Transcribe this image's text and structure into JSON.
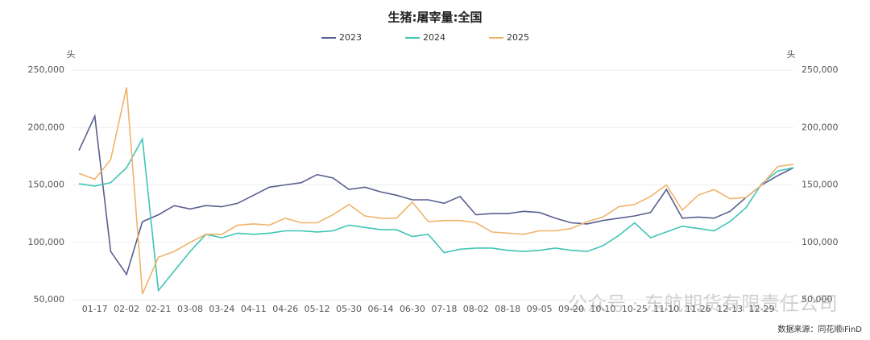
{
  "chart_data": {
    "type": "line",
    "title": "生猪:屠宰量:全国",
    "y_unit": "头",
    "y2_unit": "头",
    "categories": [
      null,
      "01-17",
      null,
      "02-02",
      null,
      "02-21",
      null,
      "03-08",
      null,
      "03-24",
      null,
      "04-11",
      null,
      "04-26",
      null,
      "05-12",
      null,
      "05-30",
      null,
      "06-14",
      null,
      "06-30",
      null,
      "07-18",
      null,
      "08-02",
      null,
      "08-18",
      null,
      "09-05",
      null,
      "09-20",
      null,
      "10-10",
      null,
      "10-25",
      null,
      "11-10",
      null,
      "11-26",
      null,
      "12-13",
      null,
      "12-29",
      null,
      null
    ],
    "series": [
      {
        "name": "2023",
        "color": "#5a5f8f",
        "values": [
          180000,
          210000,
          92000,
          72000,
          118000,
          124000,
          132000,
          129000,
          132000,
          131000,
          134000,
          141000,
          148000,
          150000,
          152000,
          159000,
          156000,
          146000,
          148000,
          144000,
          141000,
          137000,
          137000,
          134000,
          140000,
          124000,
          125000,
          125000,
          127000,
          126000,
          121000,
          117000,
          116000,
          119000,
          121000,
          123000,
          126000,
          146000,
          121000,
          122000,
          121000,
          127000,
          139000,
          150000,
          158000,
          165000
        ]
      },
      {
        "name": "2024",
        "color": "#3fc5b5",
        "values": [
          151000,
          149000,
          152000,
          165000,
          190000,
          58000,
          75000,
          92000,
          107000,
          104000,
          108000,
          107000,
          108000,
          110000,
          110000,
          109000,
          110000,
          115000,
          113000,
          111000,
          111000,
          105000,
          107000,
          91000,
          94000,
          95000,
          95000,
          93000,
          92000,
          93000,
          95000,
          93000,
          92000,
          97000,
          106000,
          117000,
          104000,
          109000,
          114000,
          112000,
          110000,
          118000,
          130000,
          151000,
          162000,
          165000
        ]
      },
      {
        "name": "2025",
        "color": "#f0b36b",
        "values": [
          160000,
          155000,
          172000,
          235000,
          55000,
          87000,
          92000,
          100000,
          107000,
          107000,
          115000,
          116000,
          115000,
          121000,
          117000,
          117000,
          124000,
          133000,
          123000,
          121000,
          121000,
          135000,
          118000,
          119000,
          119000,
          117000,
          109000,
          108000,
          107000,
          110000,
          110000,
          112000,
          118000,
          122000,
          131000,
          133000,
          140000,
          150000,
          128000,
          141000,
          146000,
          138000,
          139000,
          150000,
          166000,
          168000
        ]
      }
    ],
    "ylim": [
      50000,
      250000
    ],
    "yticks": [
      {
        "value": 50000,
        "label": "50,000"
      },
      {
        "value": 100000,
        "label": "100,000"
      },
      {
        "value": 150000,
        "label": "150,000"
      },
      {
        "value": 200000,
        "label": "200,000"
      },
      {
        "value": 250000,
        "label": "250,000"
      }
    ],
    "y2lim": [
      50000,
      250000
    ],
    "y2ticks": [
      {
        "value": 50000,
        "label": "50,000"
      },
      {
        "value": 100000,
        "label": "100,000"
      },
      {
        "value": 150000,
        "label": "150,000"
      },
      {
        "value": 200000,
        "label": "200,000"
      },
      {
        "value": 250000,
        "label": "250,000"
      }
    ],
    "grid": true,
    "source": "数据来源：同花顺iFinD",
    "watermark": "公众号 · 东航期货有限责任公司"
  }
}
